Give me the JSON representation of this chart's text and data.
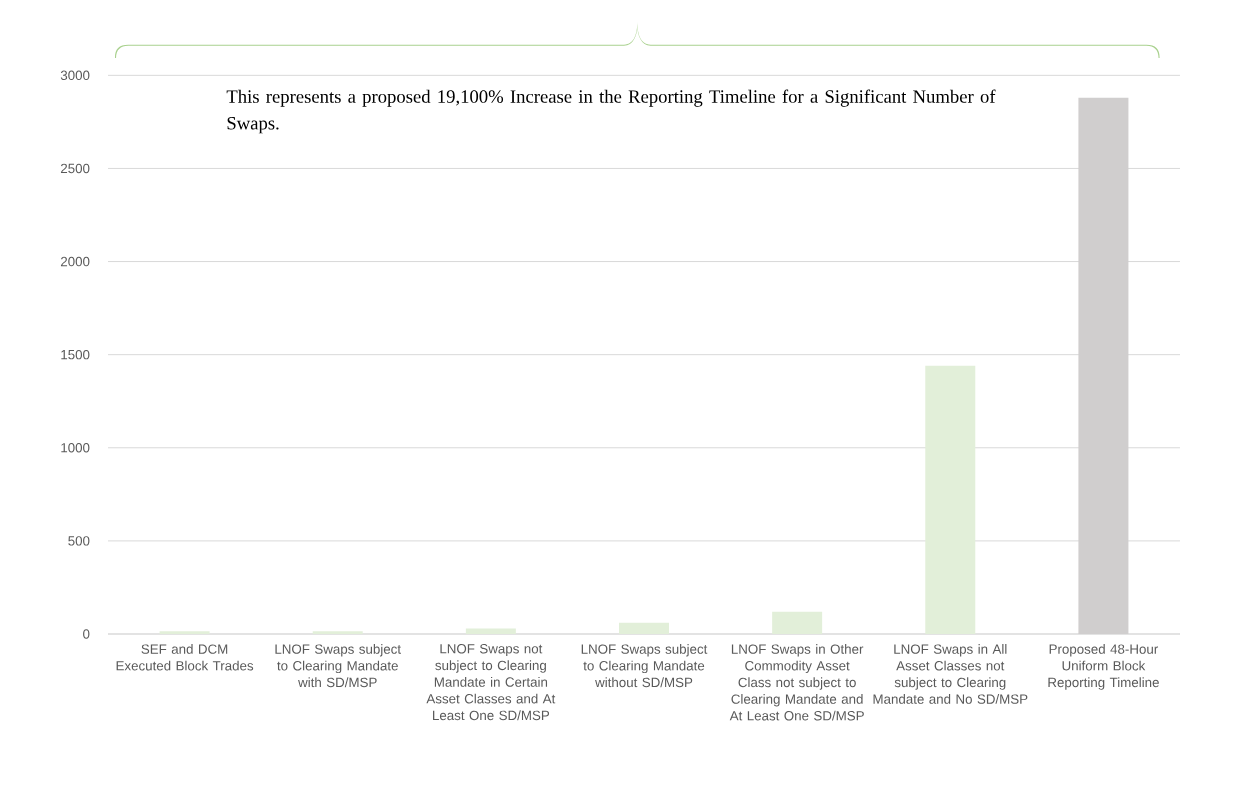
{
  "chart_data": {
    "type": "bar",
    "categories": [
      "SEF and DCM Executed Block Trades",
      "LNOF Swaps subject to Clearing Mandate with SD/MSP",
      "LNOF Swaps not subject to Clearing Mandate in Certain Asset Classes and At Least One SD/MSP",
      "LNOF Swaps subject to Clearing Mandate without SD/MSP",
      "LNOF Swaps in Other Commodity Asset Class not subject to Clearing Mandate and At Least One SD/MSP",
      "LNOF Swaps in All Asset Classes not subject to Clearing Mandate and No SD/MSP",
      "Proposed 48-Hour Uniform Block Reporting Timeline"
    ],
    "values": [
      15,
      15,
      30,
      60,
      120,
      1440,
      2880
    ],
    "colors": [
      "#e2efd9",
      "#e2efd9",
      "#e2efd9",
      "#e2efd9",
      "#e2efd9",
      "#e2efd9",
      "#d0cece"
    ],
    "ylim": [
      0,
      3000
    ],
    "yticks": [
      0,
      500,
      1000,
      1500,
      2000,
      2500,
      3000
    ],
    "grid": "y",
    "annotations": [
      "This represents a proposed 19,100% Increase in the Reporting Timeline for a Significant Number of Swaps."
    ]
  }
}
